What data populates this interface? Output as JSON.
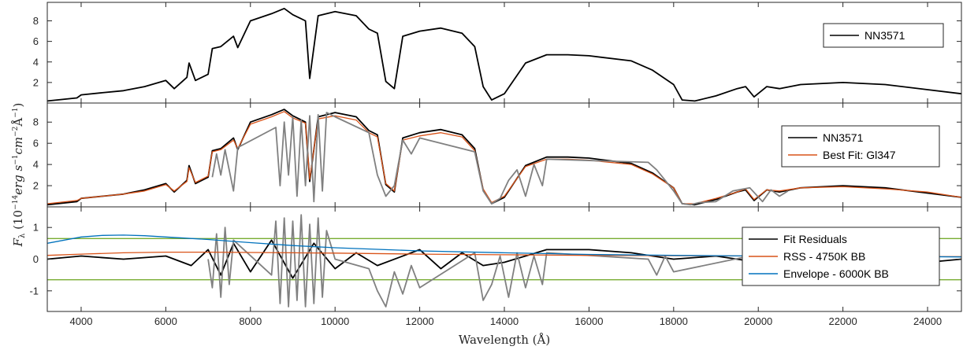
{
  "chart_data": {
    "type": "line",
    "xlabel": "Wavelength (Å)",
    "ylabel": "F_λ (10^-14 erg s^-1 cm^-2 Å^-1)",
    "xlim": [
      3200,
      24800
    ],
    "x_ticks": [
      "4000",
      "6000",
      "8000",
      "10000",
      "12000",
      "14000",
      "16000",
      "18000",
      "20000",
      "22000",
      "24000"
    ],
    "colors": {
      "spectrum": "#000000",
      "fit": "#D95319",
      "masked": "#808080",
      "rss": "#D95319",
      "envelope": "#0072BD",
      "threshold": "#77AC30"
    },
    "panels": [
      {
        "ylim": [
          0,
          9.8
        ],
        "y_ticks": [
          "2",
          "4",
          "6",
          "8"
        ],
        "legend_position": "top-right",
        "legend": [
          "NN3571"
        ],
        "series": [
          {
            "name": "NN3571",
            "color": "#000000",
            "x": [
              3200,
              3900,
              4000,
              4500,
              5000,
              5500,
              6000,
              6200,
              6500,
              6550,
              6700,
              7000,
              7100,
              7300,
              7600,
              7700,
              8000,
              8500,
              8800,
              9000,
              9300,
              9400,
              9600,
              10000,
              10500,
              10800,
              11000,
              11200,
              11400,
              11600,
              12000,
              12500,
              13000,
              13300,
              13500,
              13700,
              14000,
              14500,
              15000,
              15500,
              16000,
              17000,
              17500,
              18000,
              18200,
              18500,
              19000,
              19500,
              19700,
              19900,
              20200,
              20500,
              21000,
              22000,
              23000,
              24000,
              24800
            ],
            "y": [
              0.2,
              0.5,
              0.8,
              1.0,
              1.2,
              1.6,
              2.2,
              1.4,
              2.5,
              3.9,
              2.2,
              2.8,
              5.3,
              5.5,
              6.5,
              5.4,
              8.0,
              8.7,
              9.2,
              8.6,
              8.0,
              2.4,
              8.5,
              8.9,
              8.5,
              7.2,
              6.8,
              2.1,
              1.4,
              6.5,
              7.0,
              7.3,
              6.8,
              5.5,
              1.6,
              0.3,
              0.9,
              3.9,
              4.7,
              4.7,
              4.6,
              4.1,
              3.2,
              1.8,
              0.3,
              0.2,
              0.7,
              1.4,
              1.6,
              0.6,
              1.6,
              1.4,
              1.8,
              2.0,
              1.8,
              1.3,
              0.9
            ]
          }
        ]
      },
      {
        "ylim": [
          0,
          9.8
        ],
        "y_ticks": [
          "2",
          "4",
          "6",
          "8"
        ],
        "legend_position": "right",
        "legend": [
          "NN3571",
          "Best Fit: Gl347"
        ],
        "series": [
          {
            "name": "NN3571",
            "color": "#000000",
            "x": [
              3200,
              3900,
              4000,
              4500,
              5000,
              5500,
              6000,
              6200,
              6500,
              6550,
              6700,
              7000,
              7100,
              7300,
              7600,
              7700,
              8000,
              8500,
              8800,
              9000,
              9300,
              9400,
              9600,
              10000,
              10500,
              10800,
              11000,
              11200,
              11400,
              11600,
              12000,
              12500,
              13000,
              13300,
              13500,
              13700,
              14000,
              14500,
              15000,
              15500,
              16000,
              17000,
              17500,
              18000,
              18200,
              18500,
              19000,
              19500,
              19700,
              19900,
              20200,
              20500,
              21000,
              22000,
              23000,
              24000,
              24800
            ],
            "y": [
              0.2,
              0.5,
              0.8,
              1.0,
              1.2,
              1.6,
              2.2,
              1.4,
              2.5,
              3.9,
              2.2,
              2.8,
              5.3,
              5.5,
              6.5,
              5.4,
              8.0,
              8.7,
              9.2,
              8.6,
              8.0,
              2.4,
              8.5,
              8.9,
              8.5,
              7.2,
              6.8,
              2.1,
              1.4,
              6.5,
              7.0,
              7.3,
              6.8,
              5.5,
              1.6,
              0.3,
              0.9,
              3.9,
              4.7,
              4.7,
              4.6,
              4.1,
              3.2,
              1.8,
              0.3,
              0.2,
              0.7,
              1.4,
              1.6,
              0.6,
              1.6,
              1.4,
              1.8,
              2.0,
              1.8,
              1.3,
              0.9
            ]
          },
          {
            "name": "Best Fit: Gl347",
            "color": "#D95319",
            "x": [
              3200,
              3900,
              4000,
              4500,
              5000,
              5500,
              6000,
              6200,
              6500,
              6550,
              6700,
              7000,
              7100,
              7300,
              7600,
              7700,
              8000,
              8500,
              8800,
              9000,
              9300,
              9400,
              9600,
              10000,
              10500,
              10800,
              11000,
              11200,
              11400,
              11600,
              12000,
              12500,
              13000,
              13300,
              13500,
              13700,
              14000,
              14500,
              15000,
              15500,
              16000,
              17000,
              17500,
              18000,
              18200,
              18500,
              19000,
              19500,
              19700,
              19900,
              20200,
              20500,
              21000,
              22000,
              23000,
              24000,
              24800
            ],
            "y": [
              0.3,
              0.6,
              0.8,
              1.0,
              1.2,
              1.5,
              2.1,
              1.5,
              2.4,
              3.7,
              2.3,
              2.9,
              5.2,
              5.4,
              6.3,
              5.5,
              7.8,
              8.5,
              9.0,
              8.4,
              7.9,
              2.6,
              8.3,
              8.6,
              8.2,
              7.0,
              6.6,
              2.2,
              1.5,
              6.3,
              6.7,
              7.0,
              6.6,
              5.3,
              1.7,
              0.4,
              1.0,
              3.8,
              4.5,
              4.5,
              4.4,
              4.0,
              3.1,
              1.8,
              0.3,
              0.3,
              0.8,
              1.4,
              1.7,
              0.7,
              1.6,
              1.5,
              1.8,
              1.9,
              1.7,
              1.4,
              0.9
            ]
          },
          {
            "name": "",
            "color": "#808080",
            "x": [
              7100,
              7200,
              7300,
              7400,
              7600,
              7700,
              8600,
              8700,
              8800,
              8900,
              9000,
              9100,
              9200,
              9300,
              9400,
              9500,
              9600,
              9700,
              9800,
              10000,
              10800,
              11000,
              11200,
              11400,
              11600,
              11800,
              12000,
              13300,
              13500,
              13700,
              13900,
              14100,
              14300,
              14500,
              14700,
              14900,
              15000,
              17400,
              17600,
              17800,
              18000,
              18200,
              18400,
              18600,
              19000,
              19400,
              19800,
              20100,
              20300,
              20500,
              20700
            ],
            "y": [
              2.8,
              5.0,
              3.0,
              5.4,
              1.5,
              5.6,
              7.5,
              2.0,
              8.0,
              3.0,
              8.5,
              1.0,
              8.2,
              2.0,
              8.6,
              0.5,
              8.7,
              1.5,
              8.9,
              8.5,
              7.0,
              3.0,
              1.0,
              2.0,
              6.3,
              5.0,
              6.5,
              5.2,
              1.5,
              0.3,
              0.8,
              2.5,
              3.5,
              1.0,
              4.0,
              2.0,
              4.5,
              4.2,
              3.5,
              2.5,
              1.5,
              0.3,
              0.2,
              0.4,
              0.5,
              1.5,
              1.8,
              0.5,
              1.6,
              1.0,
              1.5
            ]
          }
        ]
      },
      {
        "ylim": [
          -1.65,
          1.65
        ],
        "y_ticks": [
          "-1",
          "0",
          "1"
        ],
        "legend_position": "lower-right",
        "legend": [
          "Fit Residuals",
          "RSS - 4750K BB",
          "Envelope - 6000K BB"
        ],
        "thresholds": [
          0.65,
          -0.65
        ],
        "series": [
          {
            "name": "Fit Residuals",
            "color": "#000000",
            "x": [
              3200,
              4000,
              5000,
              6000,
              6600,
              7000,
              7300,
              7600,
              8000,
              8500,
              9000,
              9500,
              10000,
              10500,
              11000,
              12000,
              12500,
              13000,
              13500,
              14000,
              14500,
              15000,
              16000,
              17000,
              17500,
              18000,
              19000,
              19500,
              20000,
              21000,
              22000,
              23000,
              24000,
              24800
            ],
            "y": [
              0.0,
              0.1,
              0.0,
              0.1,
              -0.2,
              0.3,
              -0.5,
              0.5,
              -0.4,
              0.6,
              -0.6,
              0.5,
              -0.3,
              0.2,
              -0.2,
              0.3,
              -0.3,
              0.2,
              -0.2,
              -0.1,
              0.1,
              0.3,
              0.3,
              0.2,
              0.1,
              0.0,
              0.1,
              0.0,
              -0.1,
              0.0,
              0.1,
              0.0,
              -0.1,
              0.0
            ]
          },
          {
            "name": "",
            "color": "#808080",
            "x": [
              7000,
              7100,
              7200,
              7300,
              7400,
              7500,
              7600,
              8500,
              8600,
              8700,
              8800,
              8900,
              9000,
              9100,
              9200,
              9300,
              9400,
              9500,
              9600,
              9700,
              9800,
              10000,
              10800,
              11000,
              11200,
              11400,
              11600,
              11800,
              12000,
              13300,
              13500,
              13700,
              13900,
              14100,
              14300,
              14500,
              14700,
              14900,
              15000,
              17400,
              17600,
              17800,
              18000,
              19800,
              20000,
              20200,
              20400,
              20600
            ],
            "y": [
              0.0,
              -0.9,
              0.8,
              -1.2,
              1.0,
              -0.8,
              0.6,
              -0.5,
              1.2,
              -1.4,
              1.3,
              -1.5,
              1.2,
              -1.3,
              1.4,
              -1.5,
              1.1,
              -1.4,
              1.3,
              -1.2,
              0.9,
              0.0,
              -0.3,
              -1.0,
              -1.5,
              -0.4,
              -1.1,
              -0.2,
              -0.9,
              0.2,
              -1.3,
              -0.8,
              0.1,
              -1.2,
              0.2,
              -0.9,
              0.1,
              -0.8,
              0.2,
              0.0,
              -0.5,
              0.1,
              -0.4,
              0.1,
              -0.3,
              0.2,
              -0.2,
              0.1
            ]
          },
          {
            "name": "RSS - 4750K BB",
            "color": "#D95319",
            "x": [
              3200,
              4000,
              5000,
              6000,
              7000,
              8000,
              9000,
              10000,
              12000,
              14000,
              16000,
              18000,
              20000,
              22000,
              24000,
              24800
            ],
            "y": [
              0.12,
              0.16,
              0.2,
              0.22,
              0.22,
              0.21,
              0.2,
              0.19,
              0.16,
              0.14,
              0.12,
              0.11,
              0.1,
              0.09,
              0.08,
              0.08
            ]
          },
          {
            "name": "Envelope - 6000K BB",
            "color": "#0072BD",
            "x": [
              3200,
              4000,
              4500,
              5000,
              5500,
              6000,
              7000,
              8000,
              9000,
              10000,
              12000,
              14000,
              16000,
              18000,
              20000,
              22000,
              24000,
              24800
            ],
            "y": [
              0.5,
              0.7,
              0.75,
              0.76,
              0.74,
              0.7,
              0.62,
              0.52,
              0.43,
              0.36,
              0.26,
              0.2,
              0.15,
              0.12,
              0.1,
              0.09,
              0.08,
              0.07
            ]
          }
        ]
      }
    ]
  }
}
